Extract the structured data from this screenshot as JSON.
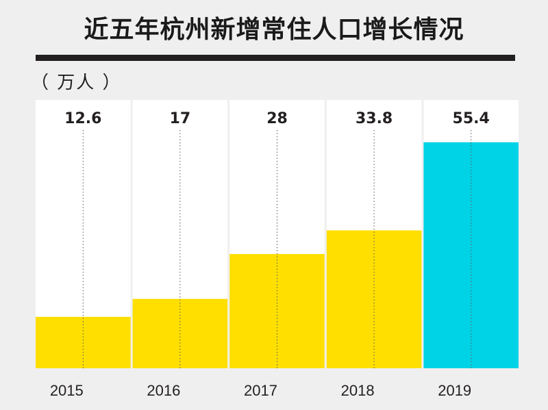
{
  "title": "近五年杭州新增常住人口增长情况",
  "unit_label": "（ 万人 ）",
  "chart_data": {
    "type": "bar",
    "title": "近五年杭州新增常住人口增长情况",
    "ylabel": "（ 万人 ）",
    "categories": [
      "2015",
      "2016",
      "2017",
      "2018",
      "2019"
    ],
    "values": [
      12.6,
      17,
      28,
      33.8,
      55.4
    ],
    "value_labels": [
      "12.6",
      "17",
      "28",
      "33.8",
      "55.4"
    ],
    "colors": [
      "#ffdf00",
      "#ffdf00",
      "#ffdf00",
      "#ffdf00",
      "#00d3e6"
    ],
    "ylim": [
      0,
      67
    ],
    "grid": false
  }
}
